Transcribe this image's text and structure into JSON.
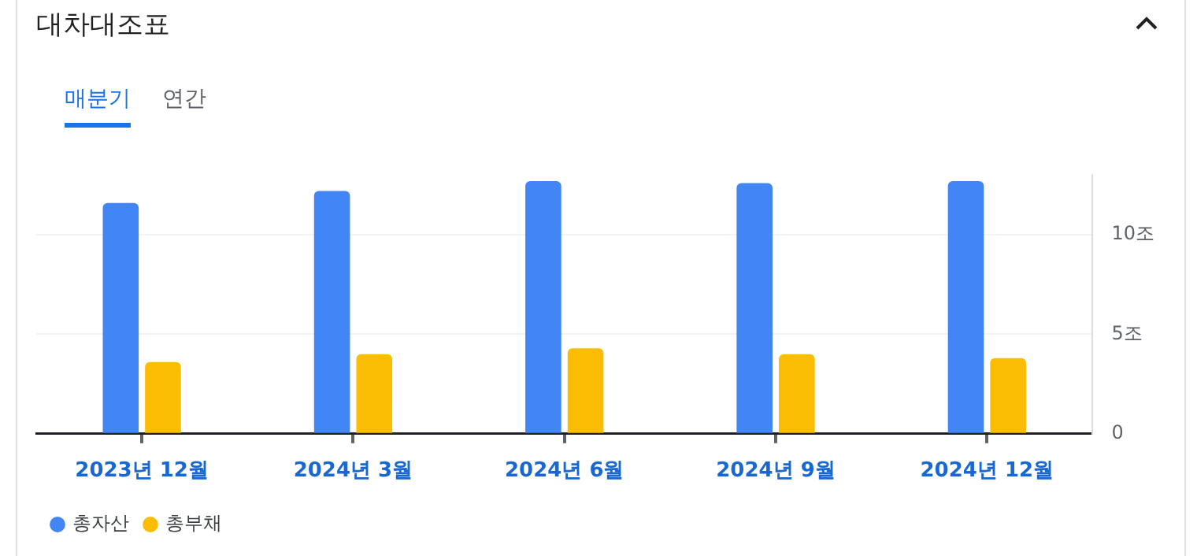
{
  "chart_data": {
    "type": "bar",
    "title": "대차대조표",
    "annotations": [
      "매분기",
      "연간"
    ],
    "categories": [
      "2023년 12월",
      "2024년 3월",
      "2024년 6월",
      "2024년 9월",
      "2024년 12월"
    ],
    "series": [
      {
        "name": "총자산",
        "color": "#4285f4",
        "values": [
          11.6,
          12.2,
          12.7,
          12.6,
          12.7
        ]
      },
      {
        "name": "총부채",
        "color": "#fbbc04",
        "values": [
          3.6,
          4.0,
          4.3,
          4.0,
          3.8
        ]
      }
    ],
    "ylim": [
      0,
      13
    ],
    "yticks": [
      {
        "value": 0,
        "label": "0"
      },
      {
        "value": 5,
        "label": "5조"
      },
      {
        "value": 10,
        "label": "10조"
      }
    ],
    "grid": "y",
    "legend": "bottom left"
  }
}
